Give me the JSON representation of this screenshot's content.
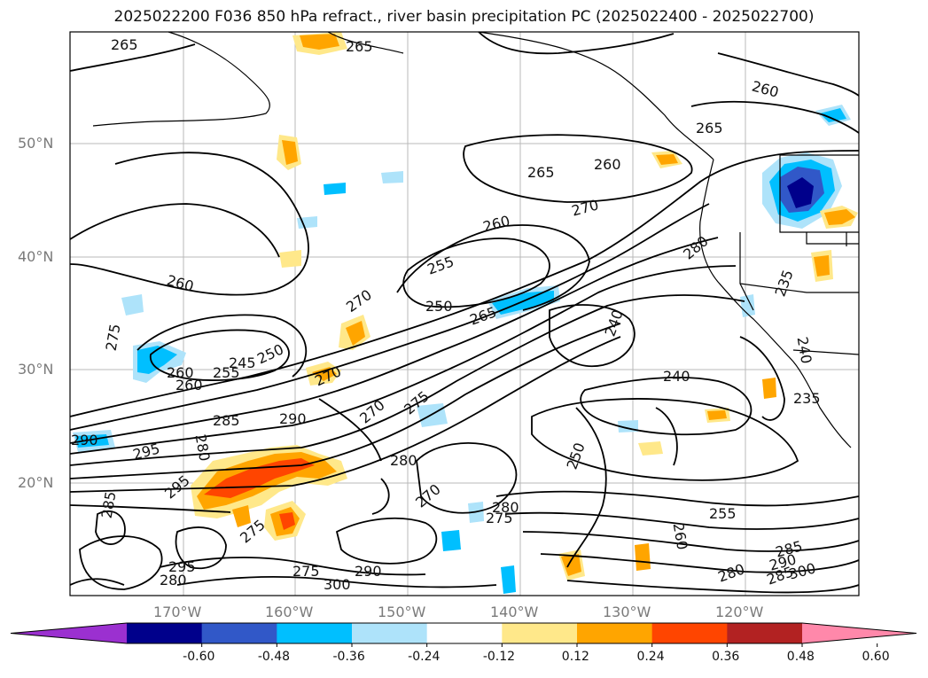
{
  "title": "2025022200 F036 850 hPa refract., river basin precipitation PC (2025022400 - 2025022700)",
  "lat_labels": [
    "50°N",
    "40°N",
    "30°N",
    "20°N"
  ],
  "lon_labels": [
    "170°W",
    "160°W",
    "150°W",
    "140°W",
    "130°W",
    "120°W"
  ],
  "colorbar": {
    "colors": [
      "#9b30d0",
      "#00008b",
      "#3158c8",
      "#00bfff",
      "#aee3fa",
      "#ffffff",
      "#ffe88a",
      "#ffa500",
      "#ff4500",
      "#b22222",
      "#ff88aa"
    ],
    "ticks": [
      "-0.60",
      "-0.48",
      "-0.36",
      "-0.24",
      "-0.12",
      "0.12",
      "0.24",
      "0.36",
      "0.48",
      "0.60"
    ]
  },
  "contour_labels": [
    "265",
    "265",
    "265",
    "260",
    "260",
    "265",
    "260",
    "260",
    "270",
    "255",
    "250",
    "245",
    "250",
    "260",
    "255",
    "260",
    "270",
    "270",
    "275",
    "265",
    "240",
    "280",
    "240",
    "275",
    "285",
    "290",
    "295",
    "290",
    "295",
    "280",
    "270",
    "280",
    "275",
    "270",
    "275",
    "280",
    "250",
    "255",
    "260",
    "285",
    "290",
    "295",
    "285",
    "280",
    "275",
    "300",
    "285",
    "290",
    "300",
    "280",
    "235",
    "235",
    "240"
  ]
}
